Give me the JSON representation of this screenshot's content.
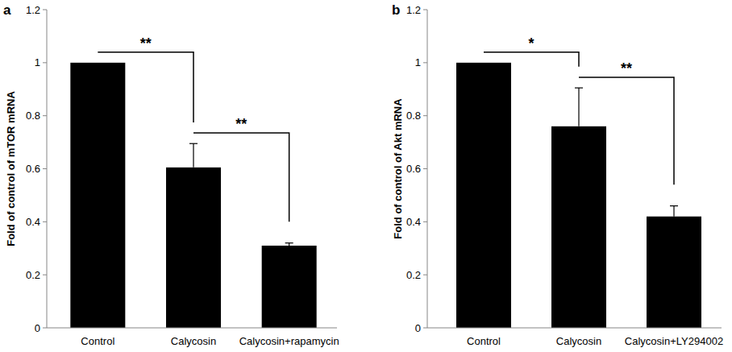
{
  "chart_data": [
    {
      "type": "bar",
      "title": "a",
      "y_label": "Fold of control of  mTOR  mRNA",
      "categories": [
        "Control",
        "Calycosin",
        "Calycosin+rapamycin"
      ],
      "values": [
        1,
        0.605,
        0.31
      ],
      "errors": [
        0,
        0.09,
        0.01
      ],
      "color": "#000000",
      "ylim": [
        0,
        1.2
      ],
      "yticks": [
        0,
        0.2,
        0.4,
        0.6,
        0.8,
        1,
        1.2
      ],
      "grid": false,
      "annotations": [
        {
          "text": "**",
          "from": 0,
          "to": 1
        },
        {
          "text": "**",
          "from": 1,
          "to": 2
        }
      ]
    },
    {
      "type": "bar",
      "title": "b",
      "y_label": "Fold of control of  Akt  mRNA",
      "categories": [
        "Control",
        "Calycosin",
        "Calycosin+LY294002"
      ],
      "values": [
        1,
        0.76,
        0.42
      ],
      "errors": [
        0,
        0.145,
        0.04
      ],
      "color": "#000000",
      "ylim": [
        0,
        1.2
      ],
      "yticks": [
        0,
        0.2,
        0.4,
        0.6,
        0.8,
        1,
        1.2
      ],
      "grid": false,
      "annotations": [
        {
          "text": "*",
          "from": 0,
          "to": 1
        },
        {
          "text": "**",
          "from": 1,
          "to": 2
        }
      ]
    }
  ]
}
